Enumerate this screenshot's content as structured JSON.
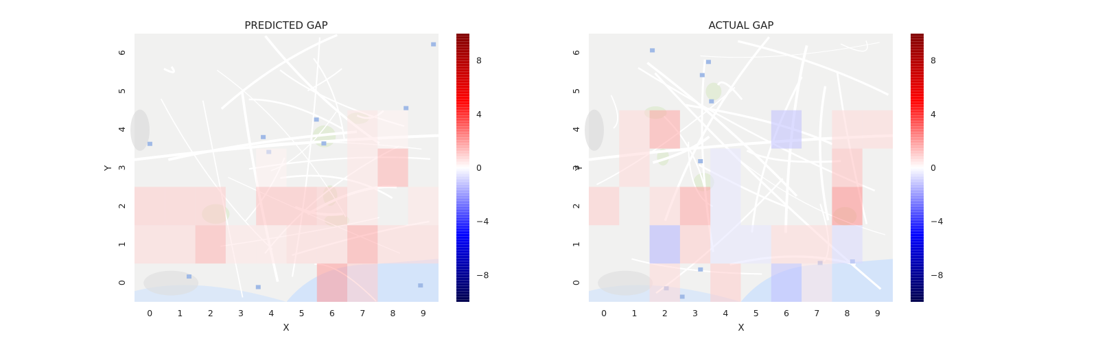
{
  "chart_data": [
    {
      "type": "heatmap",
      "title": "PREDICTED GAP",
      "xlabel": "X",
      "ylabel": "Y",
      "x": [
        0,
        1,
        2,
        3,
        4,
        5,
        6,
        7,
        8,
        9
      ],
      "y": [
        0,
        1,
        2,
        3,
        4,
        5,
        6
      ],
      "grid": false,
      "background": "city street map",
      "colorbar": {
        "ticks": [
          -8,
          -4,
          0,
          4,
          8
        ],
        "range": [
          -10,
          10
        ],
        "colormap": "seismic"
      },
      "values": [
        [
          0,
          0,
          0,
          0,
          0,
          0,
          4,
          2,
          0,
          0
        ],
        [
          1.5,
          1.5,
          3,
          1,
          1,
          1.5,
          1.5,
          3.5,
          1.5,
          1.5
        ],
        [
          2,
          2,
          2,
          0,
          2.5,
          2.5,
          2,
          1,
          0,
          1
        ],
        [
          0,
          0,
          0,
          0,
          0.5,
          0,
          0,
          1,
          3,
          0
        ],
        [
          0,
          0,
          0,
          0,
          0,
          0,
          0,
          1,
          0.5,
          0
        ],
        [
          0,
          0,
          0,
          0,
          0,
          0,
          0,
          0,
          0,
          0
        ],
        [
          0,
          0,
          0,
          0,
          0,
          0,
          0,
          0,
          0,
          0
        ]
      ]
    },
    {
      "type": "heatmap",
      "title": "ACTUAL GAP",
      "xlabel": "X",
      "ylabel": "Y",
      "x": [
        0,
        1,
        2,
        3,
        4,
        5,
        6,
        7,
        8,
        9
      ],
      "y": [
        0,
        1,
        2,
        3,
        4,
        5,
        6
      ],
      "grid": false,
      "background": "city street map",
      "colorbar": {
        "ticks": [
          -8,
          -4,
          0,
          4,
          8
        ],
        "range": [
          -10,
          10
        ],
        "colormap": "seismic"
      },
      "values": [
        [
          0,
          0,
          1.5,
          0,
          2,
          0,
          -2.5,
          1,
          0,
          0
        ],
        [
          0,
          0,
          -3,
          2,
          -1,
          -1,
          1.5,
          1.5,
          -1.5,
          0
        ],
        [
          2,
          0,
          1.5,
          3.5,
          -1,
          0,
          0,
          0,
          4.5,
          0
        ],
        [
          0,
          1.5,
          0,
          0,
          -1,
          0,
          0,
          0,
          2.5,
          0
        ],
        [
          0,
          1.5,
          3.5,
          0,
          0,
          0,
          -2.5,
          0,
          1.5,
          1.5
        ],
        [
          0,
          0,
          0,
          0,
          0,
          0,
          0,
          0,
          0,
          0
        ],
        [
          0,
          0,
          0,
          0,
          0,
          0,
          0,
          0,
          0,
          0
        ]
      ]
    }
  ]
}
